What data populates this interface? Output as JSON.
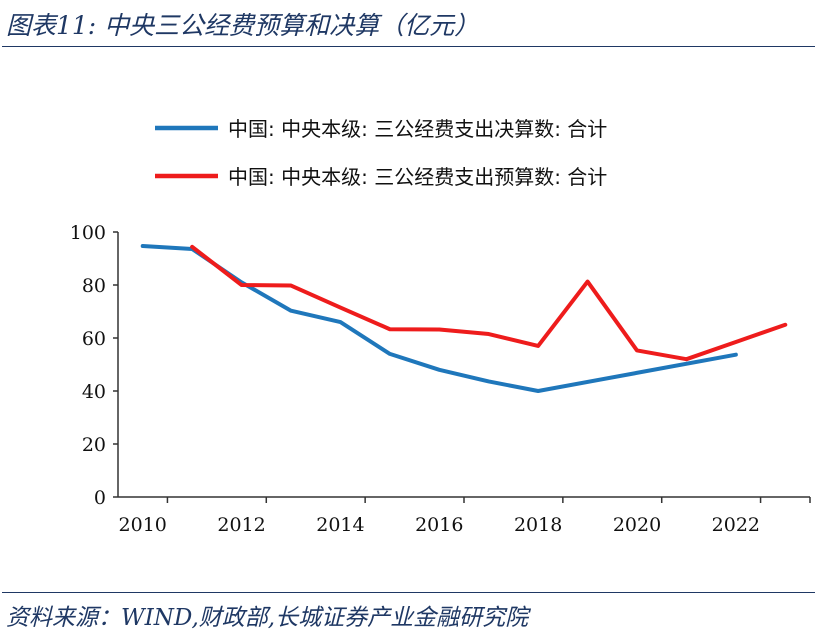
{
  "header": {
    "title": "图表11:  中央三公经费预算和决算（亿元）"
  },
  "footer": {
    "source": "资料来源：WIND,财政部,长城证券产业金融研究院"
  },
  "colors": {
    "accent": "#1f3864",
    "series_actual": "#1f77bb",
    "series_budget": "#ee1c1c"
  },
  "chart_data": {
    "type": "line",
    "x": [
      2010,
      2011,
      2012,
      2013,
      2014,
      2015,
      2016,
      2017,
      2018,
      2019,
      2020,
      2021,
      2022,
      2023
    ],
    "series": [
      {
        "name": "中国: 中央本级: 三公经费支出决算数: 合计",
        "color": "#1f77bb",
        "x": [
          2010,
          2011,
          2012,
          2013,
          2014,
          2015,
          2016,
          2017,
          2018,
          2022
        ],
        "values": [
          94.7,
          93.6,
          81.0,
          70.3,
          66.0,
          54.0,
          48.0,
          43.6,
          40.0,
          53.7
        ]
      },
      {
        "name": "中国: 中央本级: 三公经费支出预算数: 合计",
        "color": "#ee1c1c",
        "x": [
          2011,
          2012,
          2013,
          2014,
          2015,
          2016,
          2017,
          2018,
          2019,
          2020,
          2021,
          2022,
          2023
        ],
        "values": [
          94.4,
          80.0,
          79.8,
          71.5,
          63.3,
          63.2,
          61.5,
          57.0,
          81.3,
          55.3,
          52.0,
          58.5,
          65.0
        ]
      }
    ],
    "xticks": [
      "2010",
      "2012",
      "2014",
      "2016",
      "2018",
      "2020",
      "2022"
    ],
    "yticks": [
      "0",
      "20",
      "40",
      "60",
      "80",
      "100"
    ],
    "ylim": [
      0,
      100
    ],
    "xlim": [
      2010,
      2023
    ],
    "grid": false,
    "legend": "top"
  }
}
